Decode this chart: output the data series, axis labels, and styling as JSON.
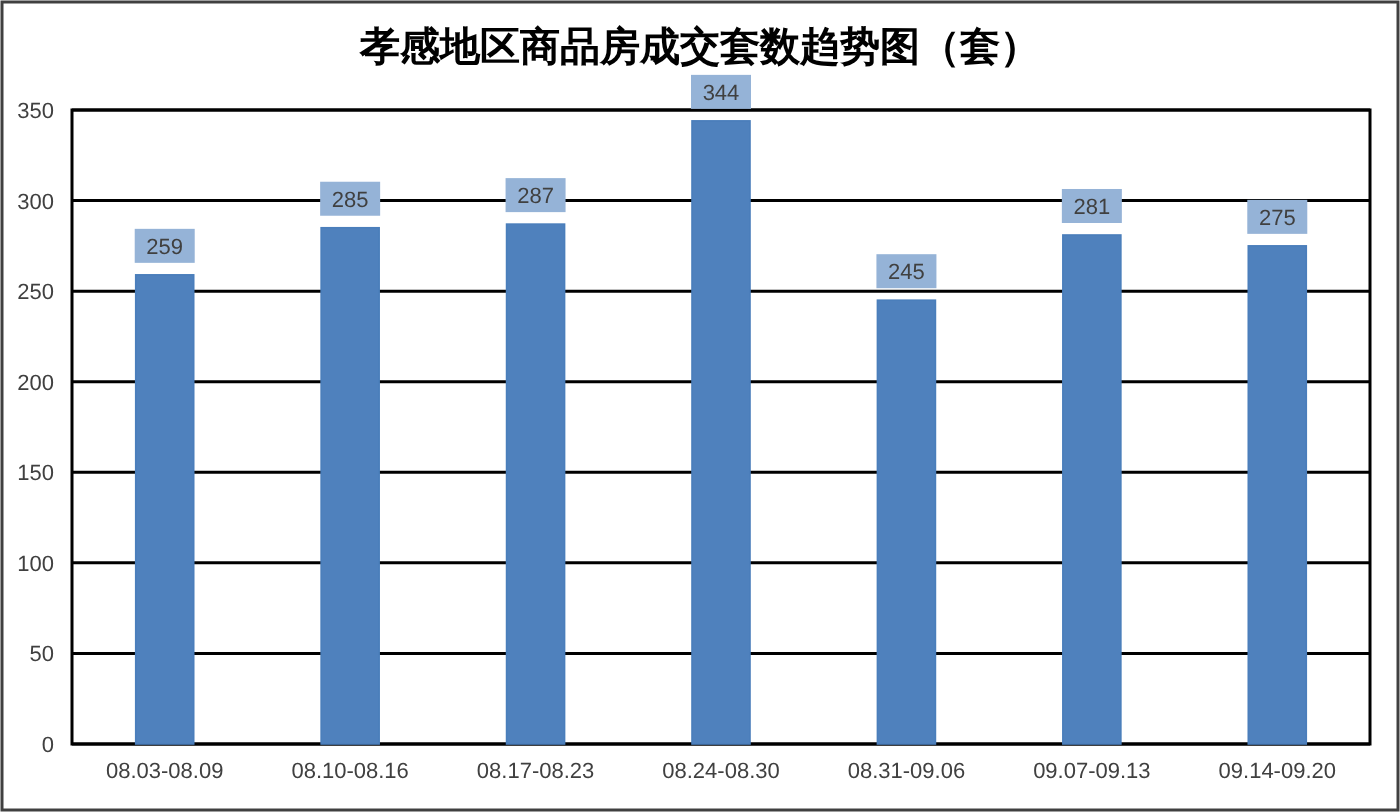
{
  "chart_data": {
    "type": "bar",
    "title": "孝感地区商品房成交套数趋势图（套）",
    "categories": [
      "08.03-08.09",
      "08.10-08.16",
      "08.17-08.23",
      "08.24-08.30",
      "08.31-09.06",
      "09.07-09.13",
      "09.14-09.20"
    ],
    "values": [
      259,
      285,
      287,
      344,
      245,
      281,
      275
    ],
    "color": "#4f81bd",
    "ylim": [
      0,
      350
    ],
    "yticks": [
      0,
      50,
      100,
      150,
      200,
      250,
      300,
      350
    ],
    "grid": "y",
    "data_labels": true
  }
}
